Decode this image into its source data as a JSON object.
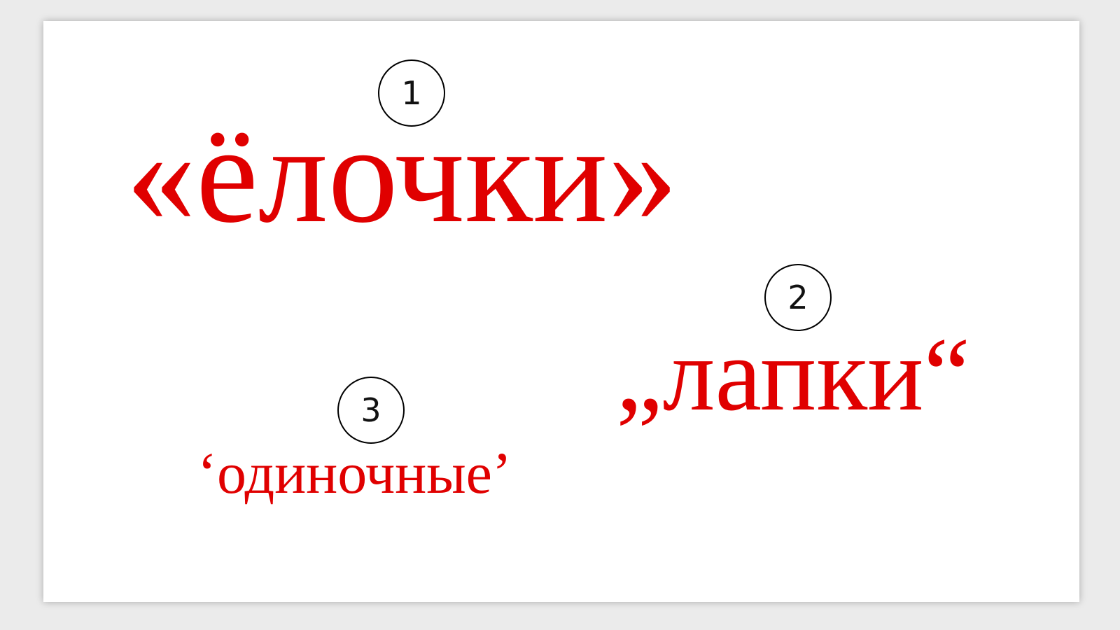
{
  "markers": {
    "one": "1",
    "two": "2",
    "three": "3"
  },
  "quotes": {
    "elochki": "«ёлочки»",
    "lapki": "„лапки“",
    "odinochnye": "‘одиночные’"
  },
  "colors": {
    "text": "#e00000",
    "background": "#ffffff",
    "marker_border": "#000000"
  }
}
